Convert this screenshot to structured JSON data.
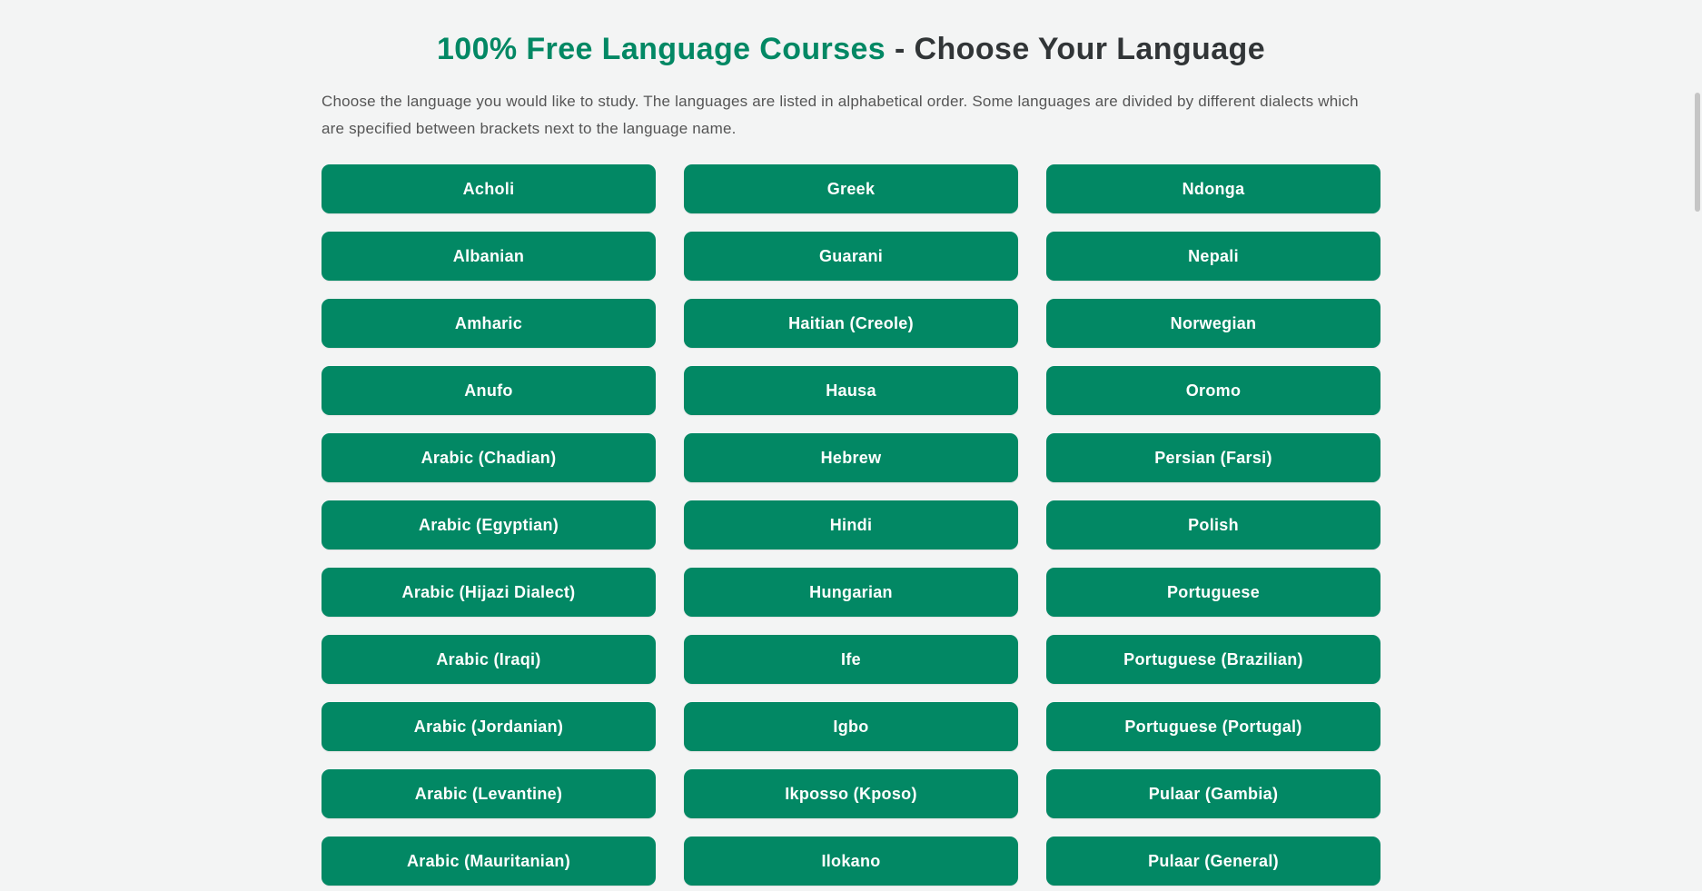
{
  "header": {
    "title_highlight": "100% Free Language Courses",
    "title_rest": "- Choose Your Language",
    "description": "Choose the language you would like to study. The languages are listed in alphabetical order. Some languages are divided by different dialects which are specified between brackets next to the language name."
  },
  "languages": {
    "columns": [
      [
        "Acholi",
        "Albanian",
        "Amharic",
        "Anufo",
        "Arabic (Chadian)",
        "Arabic (Egyptian)",
        "Arabic (Hijazi Dialect)",
        "Arabic (Iraqi)",
        "Arabic (Jordanian)",
        "Arabic (Levantine)",
        "Arabic (Mauritanian)"
      ],
      [
        "Greek",
        "Guarani",
        "Haitian (Creole)",
        "Hausa",
        "Hebrew",
        "Hindi",
        "Hungarian",
        "Ife",
        "Igbo",
        "Ikposso (Kposo)",
        "Ilokano"
      ],
      [
        "Ndonga",
        "Nepali",
        "Norwegian",
        "Oromo",
        "Persian (Farsi)",
        "Polish",
        "Portuguese",
        "Portuguese (Brazilian)",
        "Portuguese (Portugal)",
        "Pulaar (Gambia)",
        "Pulaar (General)"
      ]
    ]
  },
  "colors": {
    "accent_green": "#028864",
    "title_dark": "#313537",
    "description_gray": "#555555",
    "page_background": "#f3f4f4",
    "button_text": "#ffffff",
    "scrollbar_thumb": "#c5c5c5"
  }
}
